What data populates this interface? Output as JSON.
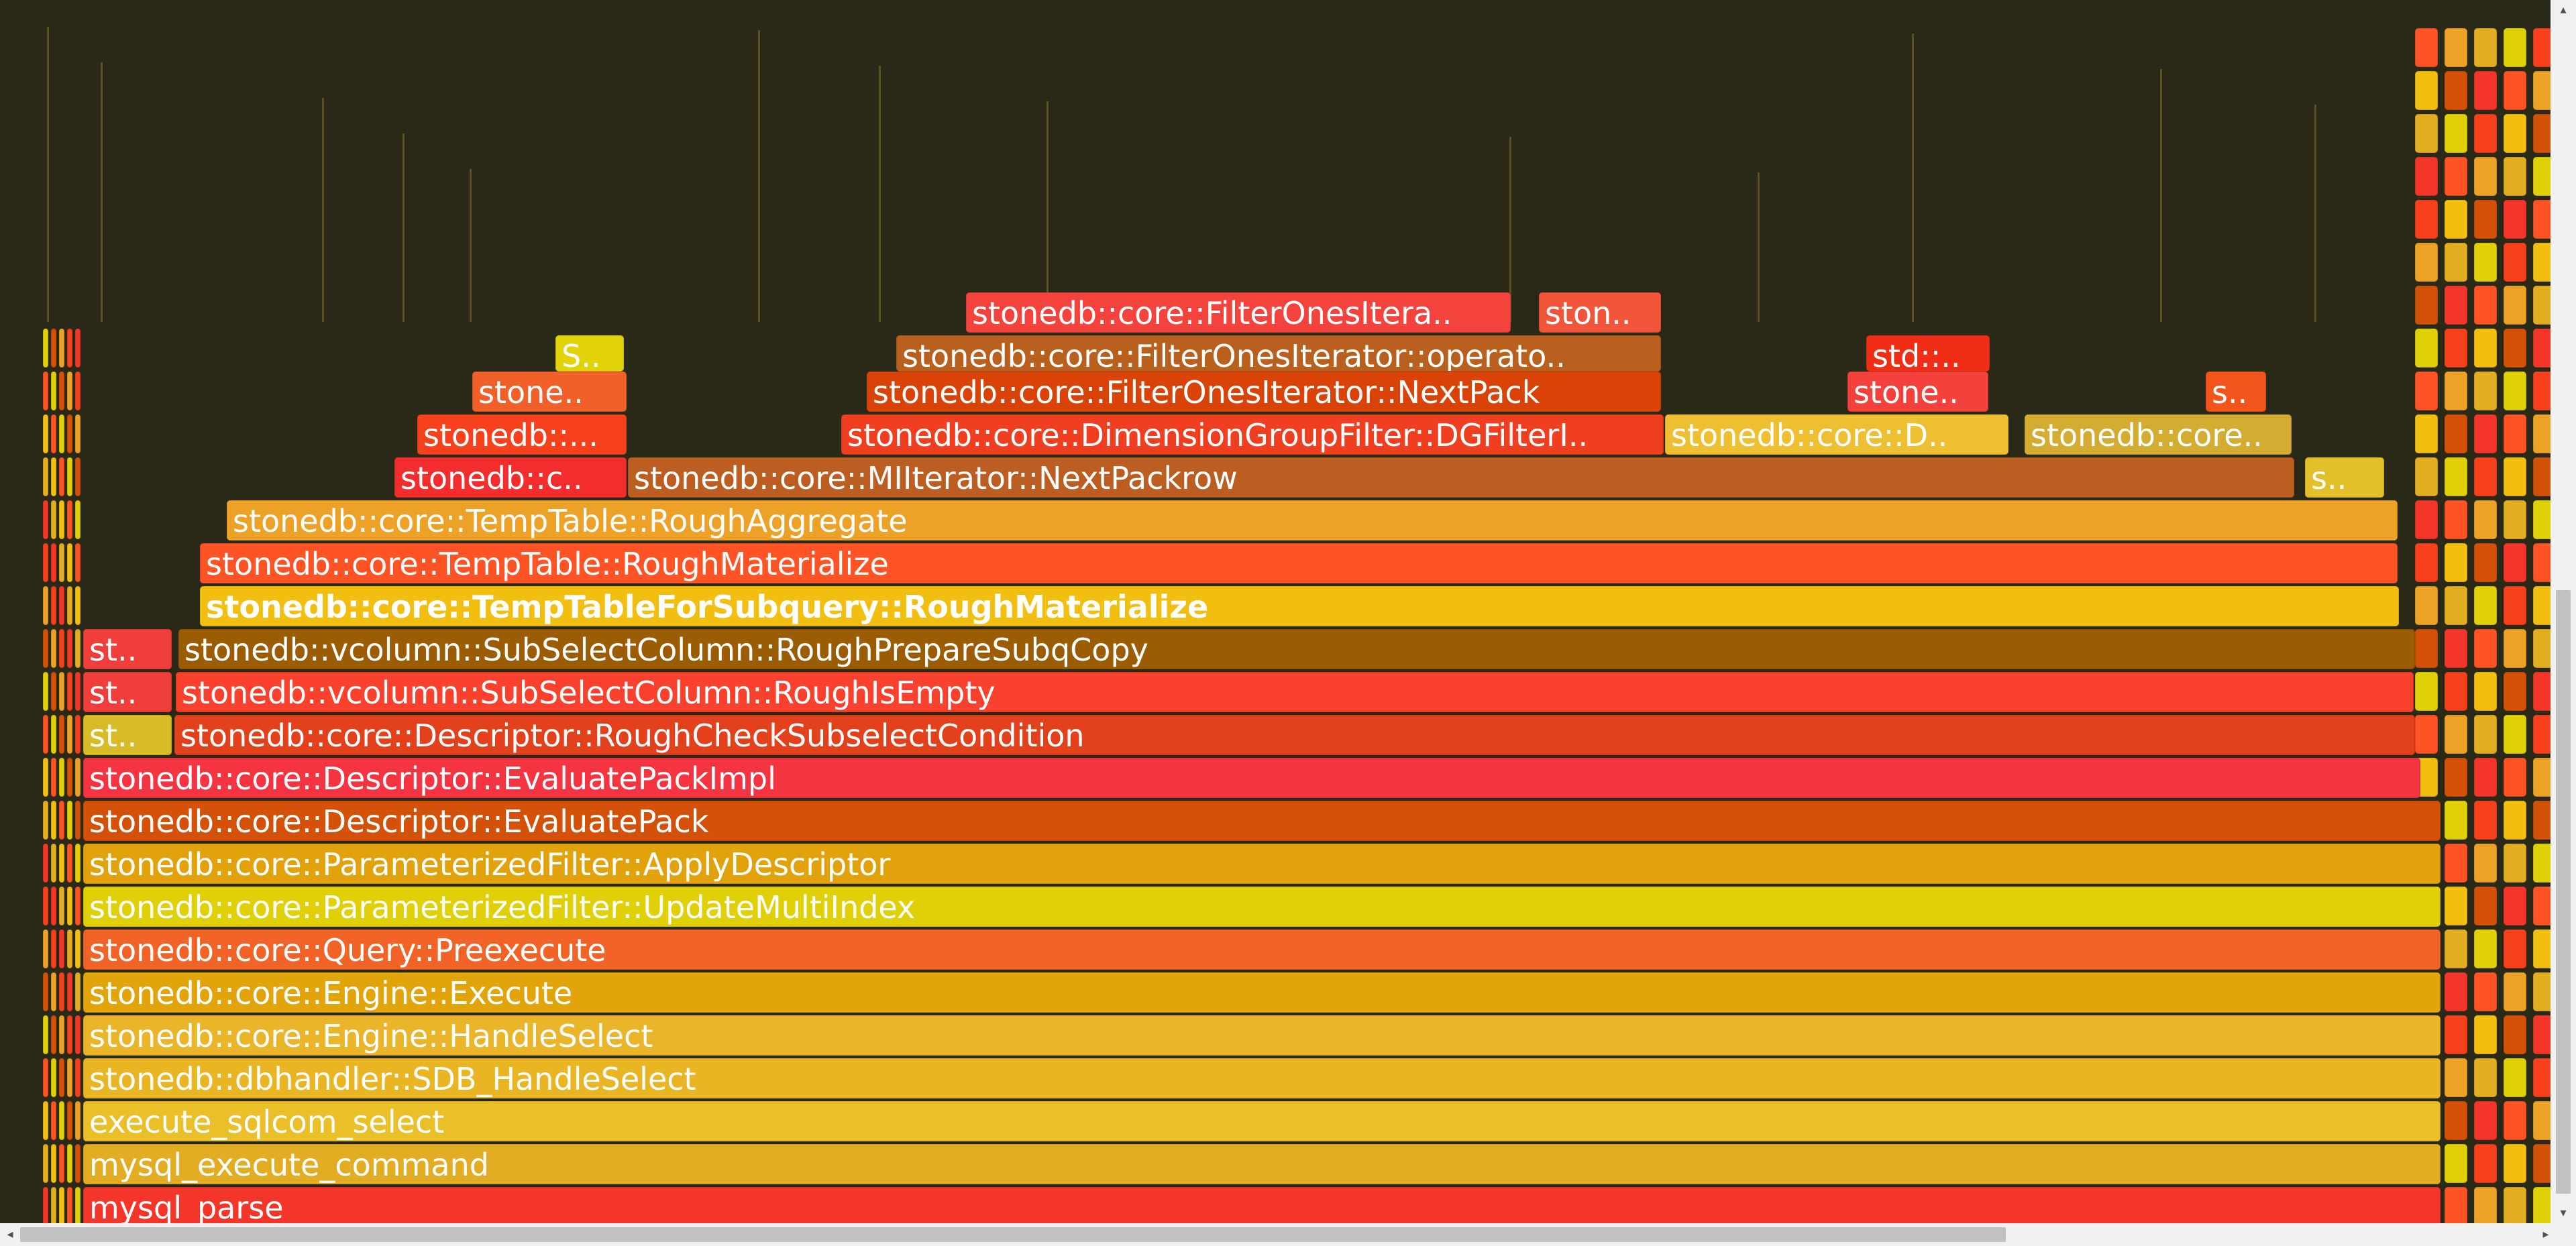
{
  "flamegraph": {
    "frames": [
      {
        "name": "mysql_parse",
        "color": "#f4362a"
      },
      {
        "name": "mysql_execute_command",
        "color": "#e2ad22"
      },
      {
        "name": "execute_sqlcom_select",
        "color": "#eabf27"
      },
      {
        "name": "stonedb::dbhandler::SDB_HandleSelect",
        "color": "#e9b523"
      },
      {
        "name": "stonedb::core::Engine::HandleSelect",
        "color": "#ebb52a"
      },
      {
        "name": "stonedb::core::Engine::Execute",
        "color": "#e1a40a"
      },
      {
        "name": "stonedb::core::Query::Preexecute",
        "color": "#f26327"
      },
      {
        "name": "stonedb::core::ParameterizedFilter::UpdateMultiIndex",
        "color": "#e0d007"
      },
      {
        "name": "stonedb::core::ParameterizedFilter::ApplyDescriptor",
        "color": "#e1a20c"
      },
      {
        "name": "stonedb::core::Descriptor::EvaluatePack",
        "color": "#d35108"
      },
      {
        "name": "stonedb::core::Descriptor::EvaluatePackImpl",
        "color": "#f53442"
      },
      {
        "name": "stonedb::core::Descriptor::RoughCheckSubselectCondition",
        "color": "#e3401c"
      },
      {
        "name": "stonedb::vcolumn::SubSelectColumn::RoughIsEmpty",
        "color": "#f9412d"
      },
      {
        "name": "stonedb::vcolumn::SubSelectColumn::RoughPrepareSubqCopy",
        "color": "#9b5c03"
      },
      {
        "name": "stonedb::core::TempTableForSubquery::RoughMaterialize",
        "color": "#f2bf10"
      },
      {
        "name": "stonedb::core::TempTable::RoughMaterialize",
        "color": "#fe5325"
      },
      {
        "name": "stonedb::core::TempTable::RoughAggregate",
        "color": "#eda227"
      },
      {
        "name": "stonedb::core::MIIterator::NextPackrow",
        "color": "#bc5d22"
      },
      {
        "name": "stonedb::core::DimensionGroupFilter::DGFilterI..",
        "color": "#ef3f20"
      },
      {
        "name": "stonedb::core::D..",
        "color": "#eebf30"
      },
      {
        "name": "stonedb::core..",
        "color": "#d4ac32"
      },
      {
        "name": "stonedb::core::FilterOnesIterator::NextPack",
        "color": "#d94307"
      },
      {
        "name": "stonedb::core::FilterOnesIterator::operato..",
        "color": "#b9601f"
      },
      {
        "name": "stonedb::core::FilterOnesItera..",
        "color": "#f4423d"
      },
      {
        "name": "ston..",
        "color": "#f2563a"
      },
      {
        "name": "std::..",
        "color": "#f02e16"
      },
      {
        "name": "stone..",
        "color": "#f4413b"
      },
      {
        "name": "s..",
        "color": "#f2541b"
      },
      {
        "name": "st..",
        "color": "#f03e3a"
      },
      {
        "name": "stonedb::c..",
        "color": "#f32d2d"
      },
      {
        "name": "stonedb::...",
        "color": "#f7411d"
      },
      {
        "name": "S..",
        "color": "#e2d20a"
      }
    ]
  }
}
